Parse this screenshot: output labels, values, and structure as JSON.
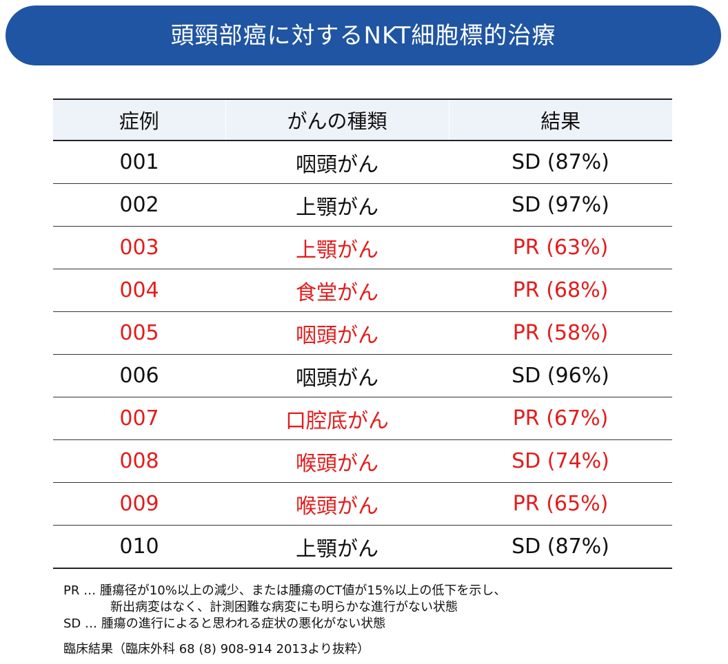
{
  "title": "頭頸部癌に対するNKT細胞標的治療",
  "chart_data": {
    "type": "table",
    "columns": [
      "症例",
      "がんの種類",
      "結果"
    ],
    "rows": [
      {
        "case": "001",
        "cancer": "咽頭がん",
        "result": "SD (87%)",
        "highlight": false
      },
      {
        "case": "002",
        "cancer": "上顎がん",
        "result": "SD (97%)",
        "highlight": false
      },
      {
        "case": "003",
        "cancer": "上顎がん",
        "result": "PR (63%)",
        "highlight": true
      },
      {
        "case": "004",
        "cancer": "食堂がん",
        "result": "PR (68%)",
        "highlight": true
      },
      {
        "case": "005",
        "cancer": "咽頭がん",
        "result": "PR (58%)",
        "highlight": true
      },
      {
        "case": "006",
        "cancer": "咽頭がん",
        "result": "SD (96%)",
        "highlight": false
      },
      {
        "case": "007",
        "cancer": "口腔底がん",
        "result": "PR (67%)",
        "highlight": true
      },
      {
        "case": "008",
        "cancer": "喉頭がん",
        "result": "SD (74%)",
        "highlight": true
      },
      {
        "case": "009",
        "cancer": "喉頭がん",
        "result": "PR (65%)",
        "highlight": true
      },
      {
        "case": "010",
        "cancer": "上顎がん",
        "result": "SD (87%)",
        "highlight": false
      }
    ]
  },
  "notes": {
    "pr_line1": "PR … 腫瘍径が10%以上の減少、または腫瘍のCT値が15%以上の低下を示し、",
    "pr_line2": "新出病変はなく、計測困難な病変にも明らかな進行がない状態",
    "sd_line": "SD … 腫瘍の進行によると思われる症状の悪化がない状態"
  },
  "source": "臨床結果（臨床外科 68 (8) 908-914 2013より抜粋）",
  "colors": {
    "banner": "#1f55a2",
    "header_bg": "#eef3f9",
    "highlight": "#e31c1c",
    "text": "#111111"
  }
}
